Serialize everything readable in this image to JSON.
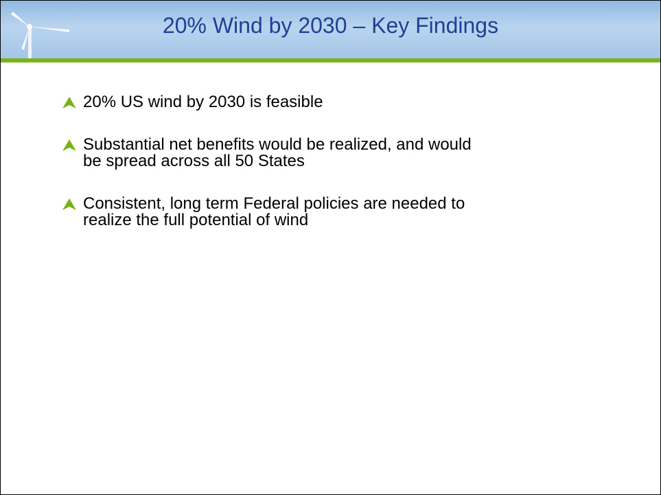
{
  "header": {
    "title": "20% Wind by 2030 – Key Findings"
  },
  "bullets": [
    {
      "lines": [
        "20% US wind by 2030 is feasible"
      ]
    },
    {
      "lines": [
        "Substantial net benefits would be realized, and would",
        "be spread across all 50 States"
      ]
    },
    {
      "lines": [
        "Consistent, long term Federal policies are needed to",
        "realize the full potential of wind"
      ]
    }
  ]
}
